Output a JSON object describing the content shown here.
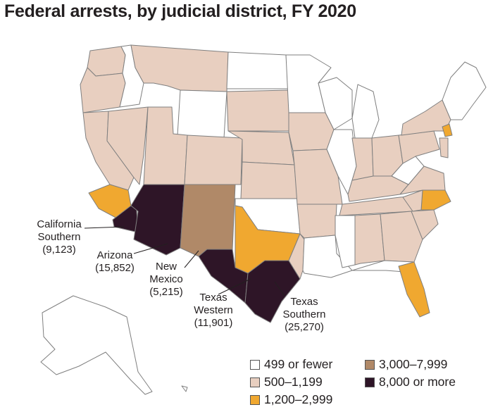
{
  "title": "Federal arrests, by judicial district, FY 2020",
  "colors": {
    "c0": "#ffffff",
    "c1": "#e8cfc0",
    "c2": "#f0a830",
    "c3": "#b08968",
    "c4": "#2e1527",
    "border": "#7f7f7f"
  },
  "legend": [
    {
      "key": "c0",
      "label": "499 or fewer"
    },
    {
      "key": "c1",
      "label": "500–1,199"
    },
    {
      "key": "c2",
      "label": "1,200–2,999"
    },
    {
      "key": "c3",
      "label": "3,000–7,999"
    },
    {
      "key": "c4",
      "label": "8,000 or more"
    }
  ],
  "callouts": {
    "california_southern": {
      "name": "California\nSouthern",
      "value": "(9,123)"
    },
    "arizona": {
      "name": "Arizona",
      "value": "(15,852)"
    },
    "new_mexico": {
      "name": "New\nMexico",
      "value": "(5,215)"
    },
    "texas_western": {
      "name": "Texas\nWestern",
      "value": "(11,901)"
    },
    "texas_southern": {
      "name": "Texas\nSouthern",
      "value": "(25,270)"
    }
  }
}
